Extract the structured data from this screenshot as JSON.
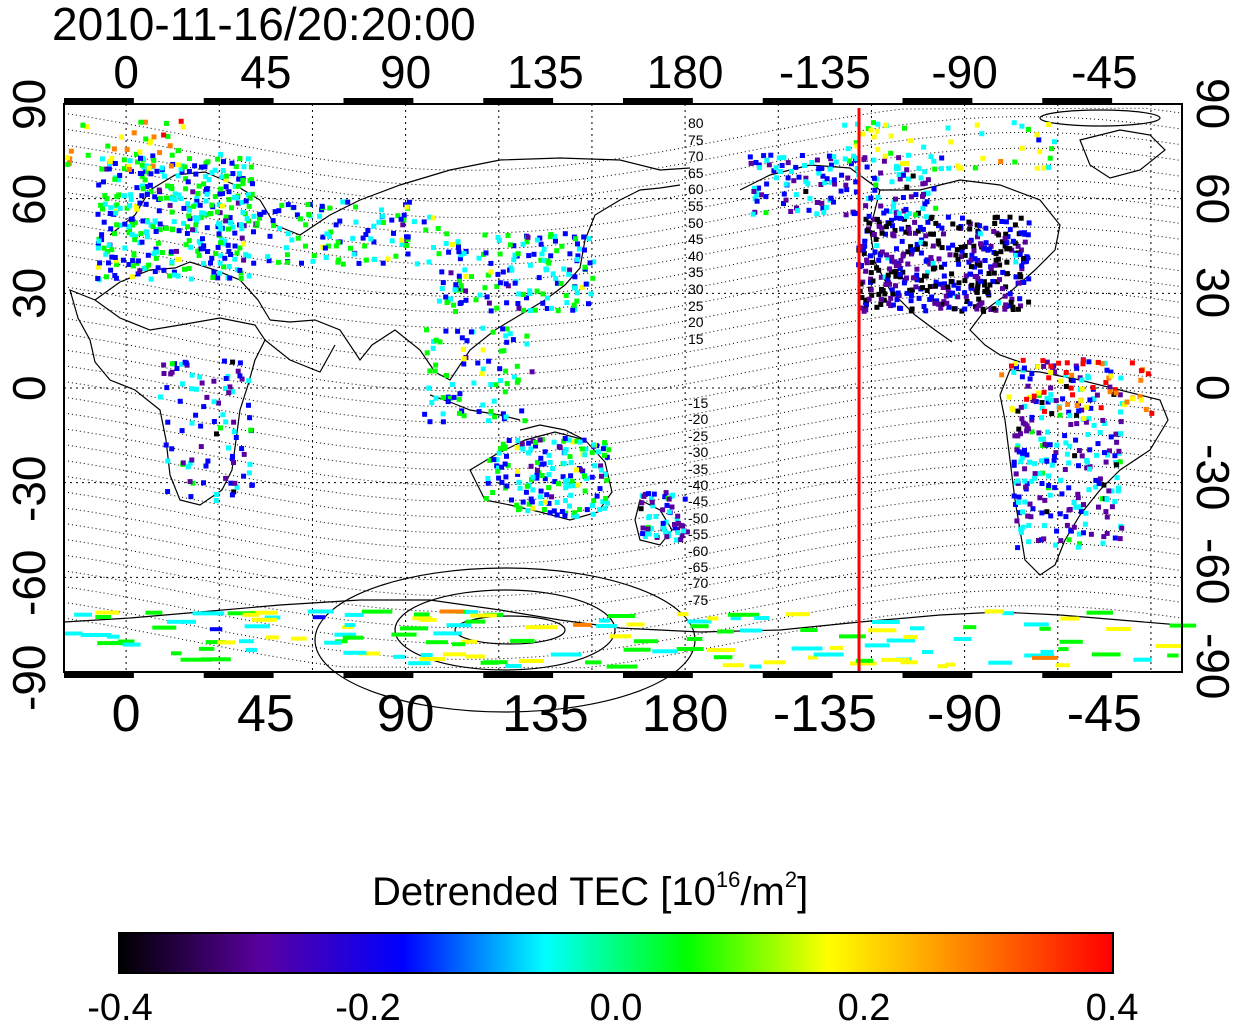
{
  "title": "2010-11-16/20:20:00",
  "map": {
    "lon_ticks": [
      "0",
      "45",
      "90",
      "135",
      "180",
      "-135",
      "-90",
      "-45"
    ],
    "lat_ticks": [
      "-90",
      "-60",
      "-30",
      "0",
      "30",
      "60",
      "90"
    ],
    "marker_longitude": -124,
    "marker_color": "#ff0000",
    "lon_range": [
      -20,
      340
    ],
    "lat_range": [
      -90,
      90
    ],
    "grid": true,
    "contour_labels_north": [
      "80",
      "75",
      "70",
      "65",
      "60",
      "55",
      "50",
      "45",
      "40",
      "35",
      "30",
      "25",
      "20",
      "15"
    ],
    "contour_labels_south": [
      "-15",
      "-20",
      "-25",
      "-30",
      "-35",
      "-40",
      "-45",
      "-50",
      "-55",
      "-60",
      "-65",
      "-70",
      "-75"
    ]
  },
  "colorbar": {
    "title": "Detrended TEC  [10",
    "unit_exp": "16",
    "unit_mid": "/m",
    "unit_exp2": "2",
    "unit_end": "]",
    "range": [
      -0.4,
      0.4
    ],
    "tick_labels": [
      "-0.4",
      "-0.2",
      "0.0",
      "0.2",
      "0.4"
    ],
    "colors": [
      "#000000",
      "#5a00a0",
      "#0000ff",
      "#00ffff",
      "#00ff00",
      "#ffff00",
      "#ff8000",
      "#ff0000"
    ]
  }
}
